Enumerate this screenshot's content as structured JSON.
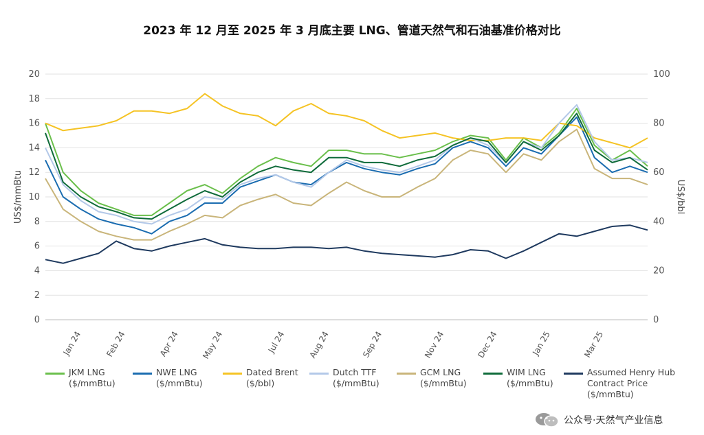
{
  "title": "2023 年 12 月至 2025 年 3 月底主要 LNG、管道天然气和石油基准价格对比",
  "watermark": "公众号·天然气产业信息",
  "chart_data": {
    "type": "line",
    "title": "2023 年 12 月至 2025 年 3 月底主要 LNG、管道天然气和石油基准价格对比",
    "ylabel_left": "US$/mmBtu",
    "ylabel_right": "US$/bbl",
    "ylim_left": [
      0,
      20
    ],
    "ylim_right": [
      0,
      100
    ],
    "yticks_left": [
      "0",
      "2",
      "4",
      "6",
      "8",
      "10",
      "12",
      "14",
      "16",
      "18",
      "20"
    ],
    "yticks_right": [
      "0",
      "20",
      "40",
      "60",
      "80",
      "100"
    ],
    "xlim": [
      0,
      68
    ],
    "x_ticks": [
      {
        "label": "Jan 24",
        "x": 4
      },
      {
        "label": "Feb 24",
        "x": 9
      },
      {
        "label": "Apr 24",
        "x": 15
      },
      {
        "label": "May 24",
        "x": 20
      },
      {
        "label": "Jul 24",
        "x": 27
      },
      {
        "label": "Aug 24",
        "x": 32
      },
      {
        "label": "Sep 24",
        "x": 38
      },
      {
        "label": "Nov 24",
        "x": 45
      },
      {
        "label": "Dec 24",
        "x": 51
      },
      {
        "label": "Jan 25",
        "x": 57
      },
      {
        "label": "Mar 25",
        "x": 63
      }
    ],
    "grid": true,
    "legend_position": "bottom",
    "x": [
      0,
      2,
      4,
      6,
      8,
      10,
      12,
      14,
      16,
      18,
      20,
      22,
      24,
      26,
      28,
      30,
      32,
      34,
      36,
      38,
      40,
      42,
      44,
      46,
      48,
      50,
      52,
      54,
      56,
      58,
      60,
      62,
      64,
      66,
      68
    ],
    "series": [
      {
        "name": "JKM LNG",
        "unit": "($/mmBtu)",
        "axis": "left",
        "color": "#6abf4b",
        "values": [
          16,
          12,
          10.5,
          9.5,
          9,
          8.5,
          8.5,
          9.5,
          10.5,
          11,
          10.3,
          11.5,
          12.5,
          13.2,
          12.8,
          12.5,
          13.8,
          13.8,
          13.5,
          13.5,
          13.2,
          13.5,
          13.8,
          14.5,
          15,
          14.8,
          13,
          14.8,
          14,
          15.2,
          17.2,
          14.2,
          13,
          13.8,
          12.5
        ]
      },
      {
        "name": "NWE LNG",
        "unit": "($/mmBtu)",
        "axis": "left",
        "color": "#1a6cb0",
        "values": [
          13,
          10,
          9,
          8.2,
          7.8,
          7.5,
          7,
          8,
          8.5,
          9.5,
          9.5,
          10.8,
          11.3,
          11.8,
          11.2,
          11,
          12,
          12.8,
          12.3,
          12,
          11.8,
          12.3,
          12.7,
          14,
          14.5,
          14,
          12.5,
          14,
          13.5,
          15,
          16.5,
          13.2,
          12,
          12.5,
          12
        ]
      },
      {
        "name": "Dated Brent",
        "unit": "($/bbl)",
        "axis": "right",
        "color": "#f5c324",
        "values": [
          80,
          77,
          78,
          79,
          81,
          85,
          85,
          84,
          86,
          92,
          87,
          84,
          83,
          79,
          85,
          88,
          84,
          83,
          81,
          77,
          74,
          75,
          76,
          74,
          73,
          73,
          74,
          74,
          73,
          80,
          79,
          74,
          72,
          70,
          74
        ]
      },
      {
        "name": "Dutch TTF",
        "unit": "($/mmBtu)",
        "axis": "left",
        "color": "#b3c8e8",
        "values": [
          14,
          11,
          9.7,
          8.8,
          8.5,
          8,
          7.8,
          8.5,
          9,
          10,
          9.8,
          11,
          11.5,
          11.8,
          11.2,
          10.8,
          12,
          13,
          12.5,
          12.2,
          12,
          12.5,
          13,
          14.2,
          14.8,
          14.2,
          12.8,
          14.5,
          14,
          16,
          17.5,
          14.5,
          13,
          13.2,
          12.8
        ]
      },
      {
        "name": "GCM LNG",
        "unit": "($/mmBtu)",
        "axis": "left",
        "color": "#c9b57a",
        "values": [
          11.5,
          9,
          8,
          7.2,
          6.8,
          6.5,
          6.5,
          7.2,
          7.8,
          8.5,
          8.3,
          9.3,
          9.8,
          10.2,
          9.5,
          9.3,
          10.3,
          11.2,
          10.5,
          10,
          10,
          10.8,
          11.5,
          13,
          13.8,
          13.5,
          12,
          13.5,
          13,
          14.5,
          15.5,
          12.3,
          11.5,
          11.5,
          11
        ]
      },
      {
        "name": "WIM LNG",
        "unit": "($/mmBtu)",
        "axis": "left",
        "color": "#0f6b3a",
        "values": [
          15.2,
          11.2,
          10,
          9.2,
          8.8,
          8.3,
          8.2,
          9,
          9.8,
          10.5,
          10,
          11.2,
          12,
          12.5,
          12.2,
          12,
          13.2,
          13.2,
          12.8,
          12.8,
          12.5,
          13,
          13.3,
          14.2,
          14.8,
          14.5,
          12.8,
          14.5,
          13.8,
          15,
          16.8,
          13.8,
          12.8,
          13.2,
          12.2
        ]
      },
      {
        "name": "Assumed Henry Hub Contract Price",
        "unit": "($/mmBtu)",
        "axis": "left",
        "color": "#1f3a5f",
        "values": [
          4.9,
          4.6,
          5,
          5.4,
          6.4,
          5.8,
          5.6,
          6,
          6.3,
          6.6,
          6.1,
          5.9,
          5.8,
          5.8,
          5.9,
          5.9,
          5.8,
          5.9,
          5.6,
          5.4,
          5.3,
          5.2,
          5.1,
          5.3,
          5.7,
          5.6,
          5,
          5.6,
          6.3,
          7,
          6.8,
          7.2,
          7.6,
          7.7,
          7.3
        ]
      }
    ]
  }
}
